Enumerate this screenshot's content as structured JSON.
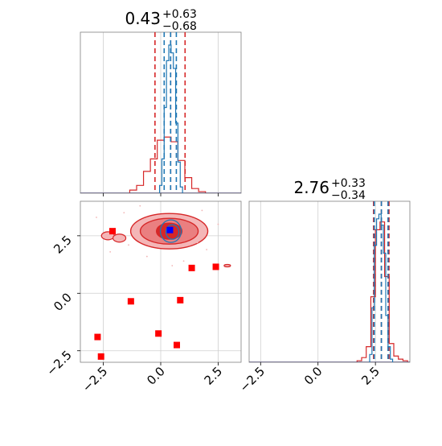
{
  "colors": {
    "red": "#d62728",
    "red_fill_outer": "#f4b6b7",
    "red_fill_mid": "#ea7f80",
    "red_fill_inner": "#d62728",
    "blue": "#1f77b4",
    "marker_red": "#ff0000",
    "marker_blue": "#0000ff",
    "grid": "#cfcfcf",
    "spine": "#808080"
  },
  "chart_data": [
    {
      "type": "histogram",
      "panel": "param1-marginal",
      "title_value": "0.43",
      "title_plus": "+0.63",
      "title_minus": "−0.68",
      "xlim": [
        -3.5,
        3.5
      ],
      "series": [
        {
          "color": "red",
          "bins_x": [
            -1.2,
            -0.9,
            -0.6,
            -0.3,
            0.0,
            0.3,
            0.6,
            0.9,
            1.2,
            1.5,
            1.8
          ],
          "heights": [
            0.02,
            0.05,
            0.14,
            0.22,
            0.34,
            0.36,
            0.33,
            0.21,
            0.1,
            0.03,
            0.01
          ],
          "quantiles": [
            -0.25,
            0.43,
            1.06
          ]
        },
        {
          "color": "blue",
          "bins_x": [
            0.0,
            0.1,
            0.2,
            0.3,
            0.4,
            0.5,
            0.6,
            0.7,
            0.8,
            0.9
          ],
          "heights": [
            0.05,
            0.22,
            0.55,
            0.85,
            0.95,
            0.9,
            0.8,
            0.45,
            0.2,
            0.04
          ],
          "quantiles": [
            0.15,
            0.43,
            0.68
          ]
        }
      ]
    },
    {
      "type": "contour-scatter",
      "panel": "param1-param2",
      "xlim": [
        -3.5,
        3.5
      ],
      "ylim": [
        -3.0,
        4.0
      ],
      "xticks": [
        "−2.5",
        "0.0",
        "2.5"
      ],
      "yticks": [
        "−2.5",
        "0.0",
        "2.5"
      ],
      "red_squares": [
        [
          -2.1,
          2.7
        ],
        [
          -1.3,
          -0.35
        ],
        [
          -0.1,
          -1.75
        ],
        [
          0.85,
          -0.3
        ],
        [
          0.7,
          -2.25
        ],
        [
          -2.75,
          -1.9
        ],
        [
          -2.6,
          -2.75
        ],
        [
          1.35,
          1.1
        ],
        [
          2.4,
          1.15
        ]
      ],
      "blue_square": [
        0.4,
        2.75
      ],
      "small_blobs": [
        [
          -2.3,
          2.5
        ],
        [
          -1.8,
          2.4
        ],
        [
          2.9,
          1.2
        ]
      ]
    },
    {
      "type": "histogram",
      "panel": "param2-marginal",
      "title_value": "2.76",
      "title_plus": "+0.33",
      "title_minus": "−0.34",
      "xlim": [
        -3.0,
        4.0
      ],
      "xticks": [
        "−2.5",
        "0.0",
        "2.5"
      ],
      "series": [
        {
          "color": "red",
          "bins_x": [
            1.8,
            2.0,
            2.2,
            2.4,
            2.6,
            2.8,
            3.0,
            3.2,
            3.4,
            3.6,
            3.8
          ],
          "heights": [
            0.01,
            0.03,
            0.1,
            0.42,
            0.85,
            0.9,
            0.55,
            0.12,
            0.04,
            0.02,
            0.01
          ],
          "quantiles": [
            2.42,
            2.76,
            3.09
          ]
        },
        {
          "color": "blue",
          "bins_x": [
            2.3,
            2.4,
            2.5,
            2.6,
            2.7,
            2.8,
            2.9,
            3.0,
            3.1,
            3.2
          ],
          "heights": [
            0.05,
            0.35,
            0.75,
            0.92,
            0.95,
            0.88,
            0.7,
            0.3,
            0.1,
            0.02
          ],
          "quantiles": [
            2.45,
            2.76,
            3.05
          ]
        }
      ]
    }
  ]
}
